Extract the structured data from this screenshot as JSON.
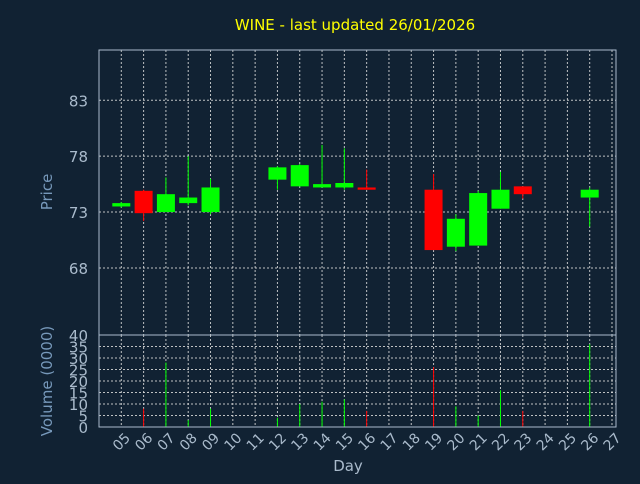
{
  "chart_data": {
    "type": "candlestick",
    "title": "WINE - last updated 26/01/2026",
    "xlabel": "Day",
    "ylabel_price": "Price",
    "ylabel_volume": "Volume (0000)",
    "x_ticks": [
      "05",
      "06",
      "07",
      "08",
      "09",
      "10",
      "11",
      "12",
      "13",
      "14",
      "15",
      "16",
      "17",
      "18",
      "19",
      "20",
      "21",
      "22",
      "23",
      "24",
      "25",
      "26",
      "27"
    ],
    "price_ticks": [
      68,
      73,
      78,
      83
    ],
    "price_ylim": [
      62,
      87.5
    ],
    "volume_ticks": [
      0,
      5,
      10,
      15,
      20,
      25,
      30,
      35,
      40
    ],
    "volume_ylim": [
      0,
      40
    ],
    "grid": true,
    "colors": {
      "background": "#112233",
      "plot_border": "#aabbcc",
      "grid": "#dddddd",
      "title": "#ffff00",
      "axis_label": "#7799bb",
      "tick_label": "#aabbcc",
      "up": "#00ff00",
      "down": "#ff0000"
    },
    "candles": [
      {
        "day": "05",
        "open": 73.5,
        "close": 73.8,
        "high": 73.9,
        "low": 73.4,
        "volume": 0
      },
      {
        "day": "06",
        "open": 74.9,
        "close": 72.9,
        "high": 75.0,
        "low": 72.2,
        "volume": 8
      },
      {
        "day": "07",
        "open": 73.0,
        "close": 74.6,
        "high": 76.1,
        "low": 73.0,
        "volume": 28
      },
      {
        "day": "08",
        "open": 73.8,
        "close": 74.3,
        "high": 78.0,
        "low": 73.6,
        "volume": 3
      },
      {
        "day": "09",
        "open": 73.0,
        "close": 75.2,
        "high": 76.0,
        "low": 72.8,
        "volume": 8
      },
      {
        "day": "12",
        "open": 75.9,
        "close": 77.0,
        "high": 77.1,
        "low": 75.0,
        "volume": 4
      },
      {
        "day": "13",
        "open": 75.3,
        "close": 77.2,
        "high": 77.3,
        "low": 75.3,
        "volume": 10
      },
      {
        "day": "14",
        "open": 75.2,
        "close": 75.5,
        "high": 79.0,
        "low": 75.2,
        "volume": 11
      },
      {
        "day": "15",
        "open": 75.2,
        "close": 75.6,
        "high": 78.7,
        "low": 75.0,
        "volume": 12
      },
      {
        "day": "16",
        "open": 75.2,
        "close": 75.0,
        "high": 76.8,
        "low": 75.0,
        "volume": 7
      },
      {
        "day": "19",
        "open": 75.0,
        "close": 69.6,
        "high": 76.4,
        "low": 69.6,
        "volume": 26
      },
      {
        "day": "20",
        "open": 69.9,
        "close": 72.4,
        "high": 72.8,
        "low": 69.5,
        "volume": 9
      },
      {
        "day": "21",
        "open": 70.0,
        "close": 74.7,
        "high": 74.9,
        "low": 70.0,
        "volume": 5
      },
      {
        "day": "22",
        "open": 73.3,
        "close": 75.0,
        "high": 76.6,
        "low": 73.3,
        "volume": 16
      },
      {
        "day": "23",
        "open": 75.3,
        "close": 74.6,
        "high": 75.3,
        "low": 74.2,
        "volume": 7
      },
      {
        "day": "26",
        "open": 74.3,
        "close": 75.0,
        "high": 75.2,
        "low": 71.7,
        "volume": 36
      }
    ]
  }
}
